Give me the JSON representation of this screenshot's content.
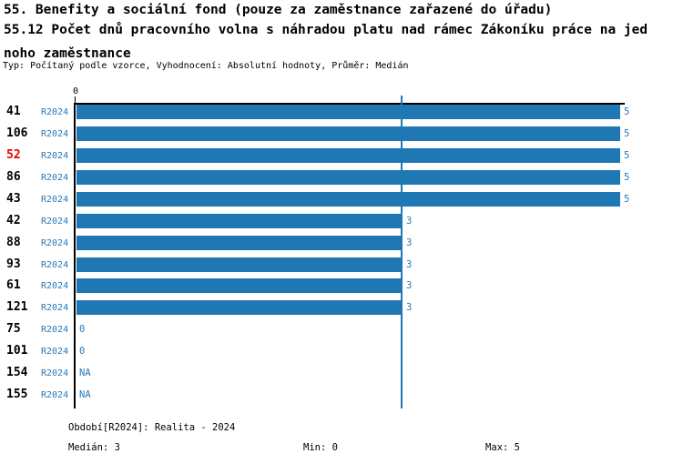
{
  "header": {
    "line1": "55. Benefity a sociální fond (pouze za zaměstnance zařazené do úřadu)",
    "line2": "55.12 Počet dnů pracovního volna s náhradou platu nad rámec Zákoníku práce na jed",
    "line3": "noho zaměstnance",
    "meta": "Typ: Počítaný podle vzorce, Vyhodnocení: Absolutní hodnoty, Průměr: Medián"
  },
  "chart_data": {
    "type": "bar",
    "orientation": "horizontal",
    "axis_zero_label": "0",
    "period_label": "R2024",
    "categories": [
      "41",
      "106",
      "52",
      "86",
      "43",
      "42",
      "88",
      "93",
      "61",
      "121",
      "75",
      "101",
      "154",
      "155"
    ],
    "values": [
      5,
      5,
      5,
      5,
      5,
      3,
      3,
      3,
      3,
      3,
      0,
      0,
      null,
      null
    ],
    "value_labels": [
      "5",
      "5",
      "5",
      "5",
      "5",
      "3",
      "3",
      "3",
      "3",
      "3",
      "0",
      "0",
      "NA",
      "NA"
    ],
    "highlighted_category": "52",
    "xlim": [
      0,
      5
    ],
    "median_line_value": 3,
    "grid": false,
    "legend": false,
    "colors": {
      "bar": "#1f77b4",
      "label_blue": "#2878b8",
      "highlight_red": "#e80000",
      "axis": "#000000"
    }
  },
  "footer": {
    "period": "Období[R2024]: Realita - 2024",
    "median": "Medián: 3",
    "min": "Min: 0",
    "max": "Max: 5"
  }
}
